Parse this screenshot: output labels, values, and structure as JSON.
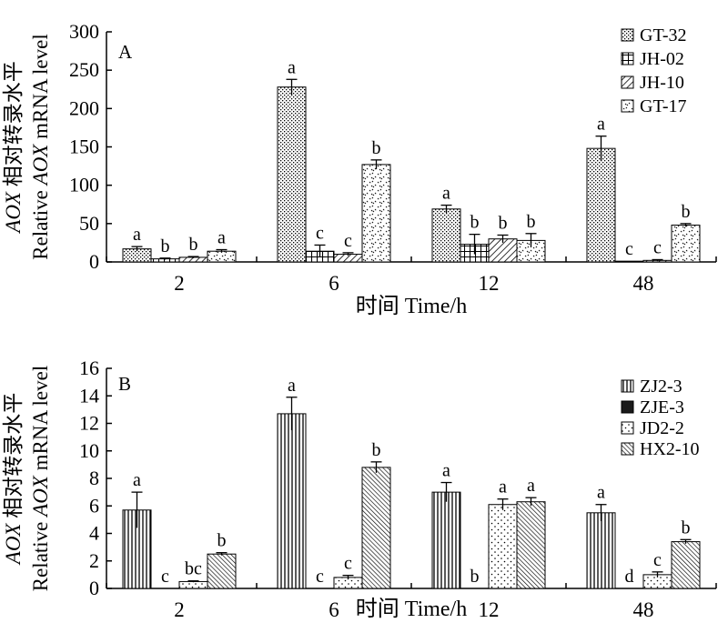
{
  "chart_data": [
    {
      "type": "bar",
      "panel_label": "A",
      "title": "",
      "xlabel": "时间 Time/h",
      "ylabel_zh_italic": "AOX",
      "ylabel_zh_rest": " 相对转录水平",
      "ylabel_en_pre": "Relative ",
      "ylabel_en_italic": "AOX",
      "ylabel_en_post": " mRNA level",
      "ylim": [
        0,
        300
      ],
      "yticks": [
        0,
        50,
        100,
        150,
        200,
        250,
        300
      ],
      "categories": [
        "2",
        "6",
        "12",
        "48"
      ],
      "series": [
        {
          "name": "GT-32",
          "values": [
            17,
            228,
            69,
            148
          ],
          "errors": [
            3,
            10,
            5,
            16
          ],
          "letters": [
            "a",
            "a",
            "a",
            "a"
          ]
        },
        {
          "name": "JH-02",
          "values": [
            4,
            14,
            23,
            1
          ],
          "errors": [
            1,
            8,
            13,
            0
          ],
          "letters": [
            "b",
            "c",
            "b",
            "c"
          ]
        },
        {
          "name": "JH-10",
          "values": [
            6,
            10,
            30,
            2
          ],
          "errors": [
            1,
            2,
            5,
            1
          ],
          "letters": [
            "b",
            "c",
            "b",
            "c"
          ]
        },
        {
          "name": "GT-17",
          "values": [
            14,
            127,
            28,
            48
          ],
          "errors": [
            2,
            6,
            9,
            2
          ],
          "letters": [
            "a",
            "b",
            "b",
            "b"
          ]
        }
      ]
    },
    {
      "type": "bar",
      "panel_label": "B",
      "title": "",
      "xlabel": "时间 Time/h",
      "ylabel_zh_italic": "AOX",
      "ylabel_zh_rest": " 相对转录水平",
      "ylabel_en_pre": "Relative ",
      "ylabel_en_italic": "AOX",
      "ylabel_en_post": " mRNA level",
      "ylim": [
        0,
        16
      ],
      "yticks": [
        0,
        2,
        4,
        6,
        8,
        10,
        12,
        14,
        16
      ],
      "categories": [
        "2",
        "6",
        "12",
        "48"
      ],
      "series": [
        {
          "name": "ZJ2-3",
          "values": [
            5.7,
            12.7,
            7.0,
            5.5
          ],
          "errors": [
            1.3,
            1.2,
            0.7,
            0.6
          ],
          "letters": [
            "a",
            "a",
            "a",
            "a"
          ]
        },
        {
          "name": "ZJE-3",
          "values": [
            0,
            0,
            0,
            0
          ],
          "errors": [
            0,
            0,
            0,
            0
          ],
          "letters": [
            "c",
            "c",
            "b",
            "d"
          ]
        },
        {
          "name": "JD2-2",
          "values": [
            0.5,
            0.8,
            6.1,
            1.0
          ],
          "errors": [
            0.05,
            0.15,
            0.4,
            0.2
          ],
          "letters": [
            "bc",
            "c",
            "a",
            "c"
          ]
        },
        {
          "name": "HX2-10",
          "values": [
            2.5,
            8.8,
            6.3,
            3.4
          ],
          "errors": [
            0.1,
            0.4,
            0.3,
            0.15
          ],
          "letters": [
            "b",
            "b",
            "a",
            "b"
          ]
        }
      ]
    }
  ]
}
